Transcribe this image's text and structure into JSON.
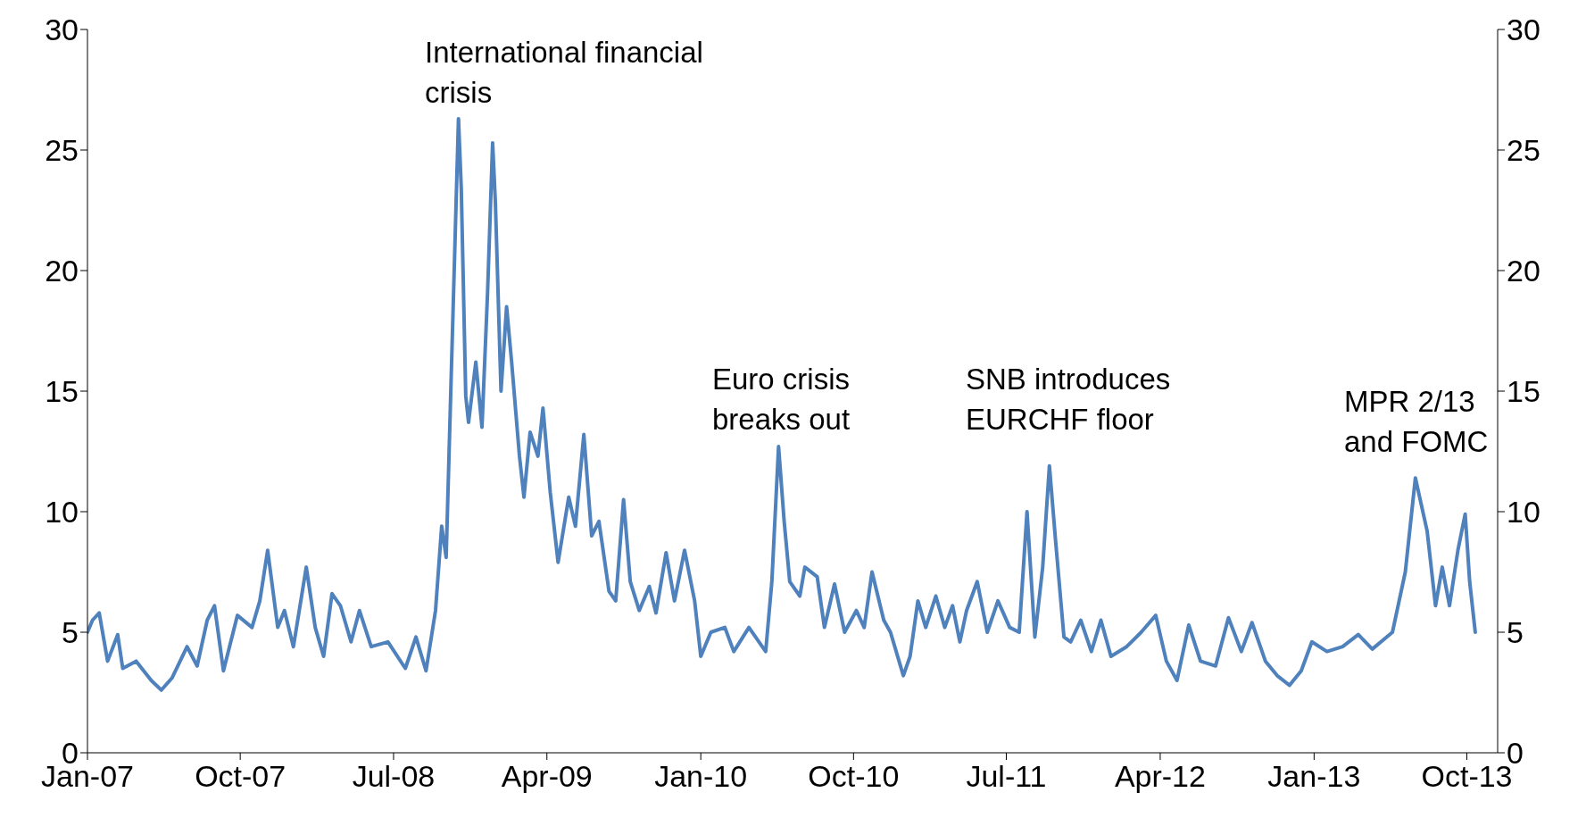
{
  "chart_data": {
    "type": "line",
    "x": [
      "2007-01-01",
      "2007-01-10",
      "2007-01-22",
      "2007-02-06",
      "2007-02-24",
      "2007-03-05",
      "2007-03-29",
      "2007-04-25",
      "2007-05-13",
      "2007-06-01",
      "2007-06-28",
      "2007-07-16",
      "2007-08-03",
      "2007-08-16",
      "2007-09-01",
      "2007-09-26",
      "2007-10-22",
      "2007-11-05",
      "2007-11-19",
      "2007-12-07",
      "2007-12-19",
      "2008-01-04",
      "2008-01-27",
      "2008-02-12",
      "2008-02-27",
      "2008-03-13",
      "2008-03-28",
      "2008-04-16",
      "2008-05-01",
      "2008-05-22",
      "2008-06-21",
      "2008-07-22",
      "2008-08-10",
      "2008-08-28",
      "2008-09-14",
      "2008-09-25",
      "2008-10-03",
      "2008-10-12",
      "2008-10-25",
      "2008-10-30",
      "2008-11-07",
      "2008-11-12",
      "2008-11-25",
      "2008-12-06",
      "2008-12-16",
      "2008-12-25",
      "2008-12-30",
      "2009-01-09",
      "2009-01-19",
      "2009-01-28",
      "2009-02-11",
      "2009-02-19",
      "2009-03-02",
      "2009-03-16",
      "2009-03-25",
      "2009-04-07",
      "2009-04-21",
      "2009-05-10",
      "2009-05-22",
      "2009-06-06",
      "2009-06-20",
      "2009-07-03",
      "2009-07-21",
      "2009-08-02",
      "2009-08-16",
      "2009-08-28",
      "2009-09-13",
      "2009-10-01",
      "2009-10-13",
      "2009-10-31",
      "2009-11-15",
      "2009-12-03",
      "2009-12-21",
      "2010-01-01",
      "2010-01-19",
      "2010-02-13",
      "2010-03-01",
      "2010-03-28",
      "2010-04-15",
      "2010-04-27",
      "2010-05-08",
      "2010-05-20",
      "2010-05-30",
      "2010-06-09",
      "2010-06-27",
      "2010-07-06",
      "2010-07-28",
      "2010-08-10",
      "2010-08-28",
      "2010-09-15",
      "2010-10-06",
      "2010-10-20",
      "2010-11-03",
      "2010-11-24",
      "2010-12-06",
      "2010-12-29",
      "2011-01-10",
      "2011-01-24",
      "2011-02-07",
      "2011-02-25",
      "2011-03-13",
      "2011-03-27",
      "2011-04-09",
      "2011-04-21",
      "2011-05-10",
      "2011-05-28",
      "2011-06-16",
      "2011-07-07",
      "2011-07-24",
      "2011-08-07",
      "2011-08-21",
      "2011-09-04",
      "2011-09-16",
      "2011-09-27",
      "2011-10-12",
      "2011-10-24",
      "2011-11-11",
      "2011-11-30",
      "2011-12-17",
      "2012-01-04",
      "2012-02-01",
      "2012-02-27",
      "2012-03-24",
      "2012-04-12",
      "2012-05-01",
      "2012-05-22",
      "2012-06-12",
      "2012-07-09",
      "2012-08-01",
      "2012-08-24",
      "2012-09-12",
      "2012-10-06",
      "2012-10-27",
      "2012-11-18",
      "2012-12-09",
      "2012-12-28",
      "2013-01-24",
      "2013-02-21",
      "2013-03-21",
      "2013-04-15",
      "2013-05-21",
      "2013-06-13",
      "2013-07-01",
      "2013-07-22",
      "2013-08-06",
      "2013-08-18",
      "2013-08-31",
      "2013-09-15",
      "2013-09-28",
      "2013-10-06",
      "2013-10-16"
    ],
    "series": [
      {
        "color": "#4f81bd",
        "values": [
          5.0,
          5.5,
          5.8,
          3.8,
          4.9,
          3.5,
          3.8,
          3.0,
          2.6,
          3.1,
          4.4,
          3.6,
          5.5,
          6.1,
          3.4,
          5.7,
          5.2,
          6.3,
          8.4,
          5.2,
          5.9,
          4.4,
          7.7,
          5.2,
          4.0,
          6.6,
          6.1,
          4.6,
          5.9,
          4.4,
          4.6,
          3.5,
          4.8,
          3.4,
          5.9,
          9.4,
          8.1,
          15.6,
          26.3,
          23.4,
          14.8,
          13.7,
          16.2,
          13.5,
          19.1,
          25.3,
          22.8,
          15.0,
          18.5,
          16.2,
          12.3,
          10.6,
          13.3,
          12.3,
          14.3,
          10.8,
          7.9,
          10.6,
          9.4,
          13.2,
          9.0,
          9.6,
          6.7,
          6.3,
          10.5,
          7.1,
          5.9,
          6.9,
          5.8,
          8.3,
          6.3,
          8.4,
          6.3,
          4.0,
          5.0,
          5.2,
          4.2,
          5.2,
          4.6,
          4.2,
          7.1,
          12.7,
          9.6,
          7.1,
          6.5,
          7.7,
          7.3,
          5.2,
          7.0,
          5.0,
          5.9,
          5.2,
          7.5,
          5.5,
          5.0,
          3.2,
          4.0,
          6.3,
          5.2,
          6.5,
          5.2,
          6.1,
          4.6,
          5.9,
          7.1,
          5.0,
          6.3,
          5.2,
          5.0,
          10.0,
          4.8,
          7.7,
          11.9,
          8.8,
          4.8,
          4.6,
          5.5,
          4.2,
          5.5,
          4.0,
          4.4,
          5.0,
          5.7,
          3.8,
          3.0,
          5.3,
          3.8,
          3.6,
          5.6,
          4.2,
          5.4,
          3.8,
          3.2,
          2.8,
          3.4,
          4.6,
          4.2,
          4.4,
          4.9,
          4.3,
          5.0,
          7.5,
          11.4,
          9.2,
          6.1,
          7.7,
          6.1,
          8.4,
          9.9,
          7.1,
          5.0
        ]
      }
    ],
    "xlim": [
      "2007-01-01",
      "2013-11-25"
    ],
    "xticks": [
      {
        "value": "2007-01-01",
        "label": "Jan-07"
      },
      {
        "value": "2007-10-01",
        "label": "Oct-07"
      },
      {
        "value": "2008-07-01",
        "label": "Jul-08"
      },
      {
        "value": "2009-04-01",
        "label": "Apr-09"
      },
      {
        "value": "2010-01-01",
        "label": "Jan-10"
      },
      {
        "value": "2010-10-01",
        "label": "Oct-10"
      },
      {
        "value": "2011-07-01",
        "label": "Jul-11"
      },
      {
        "value": "2012-04-01",
        "label": "Apr-12"
      },
      {
        "value": "2013-01-01",
        "label": "Jan-13"
      },
      {
        "value": "2013-10-01",
        "label": "Oct-13"
      }
    ],
    "ylim": [
      0,
      30
    ],
    "yticks": [
      0,
      5,
      10,
      15,
      20,
      25,
      30
    ],
    "y2lim": [
      0,
      30
    ],
    "y2ticks": [
      0,
      5,
      10,
      15,
      20,
      25,
      30
    ],
    "grid": false,
    "legend": false,
    "marker": "none",
    "line_style": "solid",
    "annotations": [
      "International financial\ncrisis",
      "Euro crisis\nbreaks out",
      "SNB introduces\nEURCHF floor",
      "MPR 2/13\nand FOMC"
    ]
  }
}
